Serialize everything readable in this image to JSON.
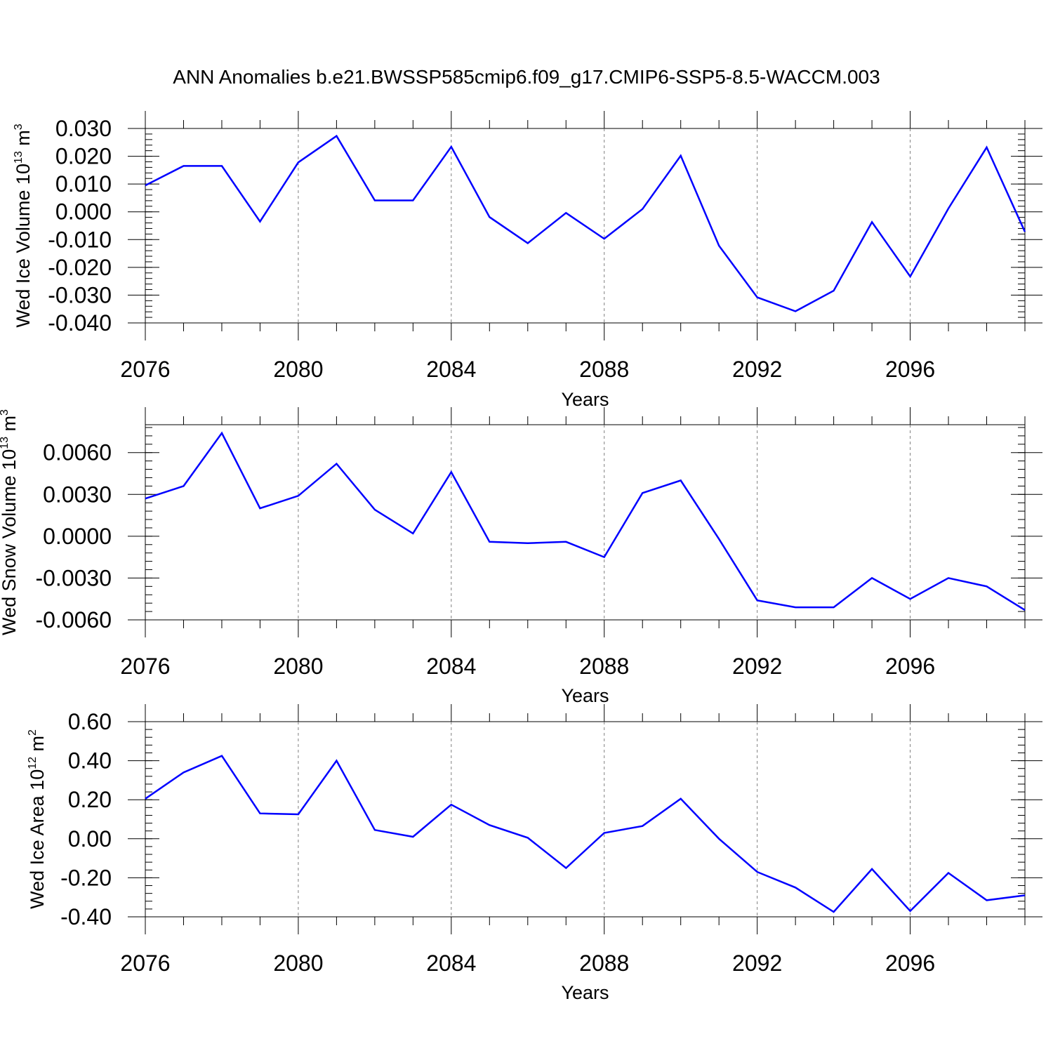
{
  "title": "ANN Anomalies b.e21.BWSSP585cmip6.f09_g17.CMIP6-SSP5-8.5-WACCM.003",
  "colors": {
    "line": "#0000ff",
    "axis": "#000000",
    "grid": "#7f7f7f"
  },
  "chart_data": [
    {
      "type": "line",
      "ylabel_main": "Wed Ice Volume 10",
      "ylabel_exp": "13",
      "ylabel_unit": " m",
      "ylabel_unit_exp": "3",
      "xlabel": "Years",
      "xlim": [
        2076,
        2099
      ],
      "ylim": [
        -0.04,
        0.03
      ],
      "yticks": [
        0.03,
        0.02,
        0.01,
        0.0,
        -0.01,
        -0.02,
        -0.03,
        -0.04
      ],
      "ytick_labels": [
        "0.030",
        "0.020",
        "0.010",
        "0.000",
        "-0.010",
        "-0.020",
        "-0.030",
        "-0.040"
      ],
      "xticks": [
        2076,
        2080,
        2084,
        2088,
        2092,
        2096
      ],
      "xtick_labels": [
        "2076",
        "2080",
        "2084",
        "2088",
        "2092",
        "2096"
      ],
      "x": [
        2076,
        2077,
        2078,
        2079,
        2080,
        2081,
        2082,
        2083,
        2084,
        2085,
        2086,
        2087,
        2088,
        2089,
        2090,
        2091,
        2092,
        2093,
        2094,
        2095,
        2096,
        2097,
        2098,
        2099
      ],
      "values": [
        0.0095,
        0.0165,
        0.0165,
        -0.0035,
        0.0178,
        0.0273,
        0.0041,
        0.0041,
        0.0234,
        -0.0019,
        -0.0113,
        -0.0004,
        -0.0097,
        0.001,
        0.0202,
        -0.0122,
        -0.0308,
        -0.0358,
        -0.0284,
        -0.0037,
        -0.0233,
        0.0012,
        0.0232,
        -0.0072
      ]
    },
    {
      "type": "line",
      "ylabel_main": "Wed Snow Volume 10",
      "ylabel_exp": "13",
      "ylabel_unit": " m",
      "ylabel_unit_exp": "3",
      "xlabel": "Years",
      "xlim": [
        2076,
        2099
      ],
      "ylim": [
        -0.006,
        0.008
      ],
      "yticks": [
        0.006,
        0.003,
        0.0,
        -0.003,
        -0.006
      ],
      "ytick_labels": [
        "0.0060",
        "0.0030",
        "0.0000",
        "-0.0030",
        "-0.0060"
      ],
      "xticks": [
        2076,
        2080,
        2084,
        2088,
        2092,
        2096
      ],
      "xtick_labels": [
        "2076",
        "2080",
        "2084",
        "2088",
        "2092",
        "2096"
      ],
      "x": [
        2076,
        2077,
        2078,
        2079,
        2080,
        2081,
        2082,
        2083,
        2084,
        2085,
        2086,
        2087,
        2088,
        2089,
        2090,
        2091,
        2092,
        2093,
        2094,
        2095,
        2096,
        2097,
        2098,
        2099
      ],
      "values": [
        0.0027,
        0.0036,
        0.0074,
        0.002,
        0.0029,
        0.0052,
        0.0019,
        0.0002,
        0.0046,
        -0.0004,
        -0.0005,
        -0.0004,
        -0.0015,
        0.0031,
        0.004,
        -0.0002,
        -0.0046,
        -0.0051,
        -0.0051,
        -0.003,
        -0.0045,
        -0.003,
        -0.0036,
        -0.0053
      ]
    },
    {
      "type": "line",
      "ylabel_main": "Wed Ice Area 10",
      "ylabel_exp": "12",
      "ylabel_unit": " m",
      "ylabel_unit_exp": "2",
      "xlabel": "Years",
      "xlim": [
        2076,
        2099
      ],
      "ylim": [
        -0.4,
        0.6
      ],
      "yticks": [
        0.6,
        0.4,
        0.2,
        0.0,
        -0.2,
        -0.4
      ],
      "ytick_labels": [
        "0.60",
        "0.40",
        "0.20",
        "0.00",
        "-0.20",
        "-0.40"
      ],
      "xticks": [
        2076,
        2080,
        2084,
        2088,
        2092,
        2096
      ],
      "xtick_labels": [
        "2076",
        "2080",
        "2084",
        "2088",
        "2092",
        "2096"
      ],
      "x": [
        2076,
        2077,
        2078,
        2079,
        2080,
        2081,
        2082,
        2083,
        2084,
        2085,
        2086,
        2087,
        2088,
        2089,
        2090,
        2091,
        2092,
        2093,
        2094,
        2095,
        2096,
        2097,
        2098,
        2099
      ],
      "values": [
        0.205,
        0.34,
        0.425,
        0.13,
        0.125,
        0.4,
        0.045,
        0.01,
        0.175,
        0.07,
        0.005,
        -0.15,
        0.03,
        0.065,
        0.205,
        0.0,
        -0.17,
        -0.25,
        -0.375,
        -0.155,
        -0.37,
        -0.175,
        -0.315,
        -0.29
      ]
    }
  ]
}
